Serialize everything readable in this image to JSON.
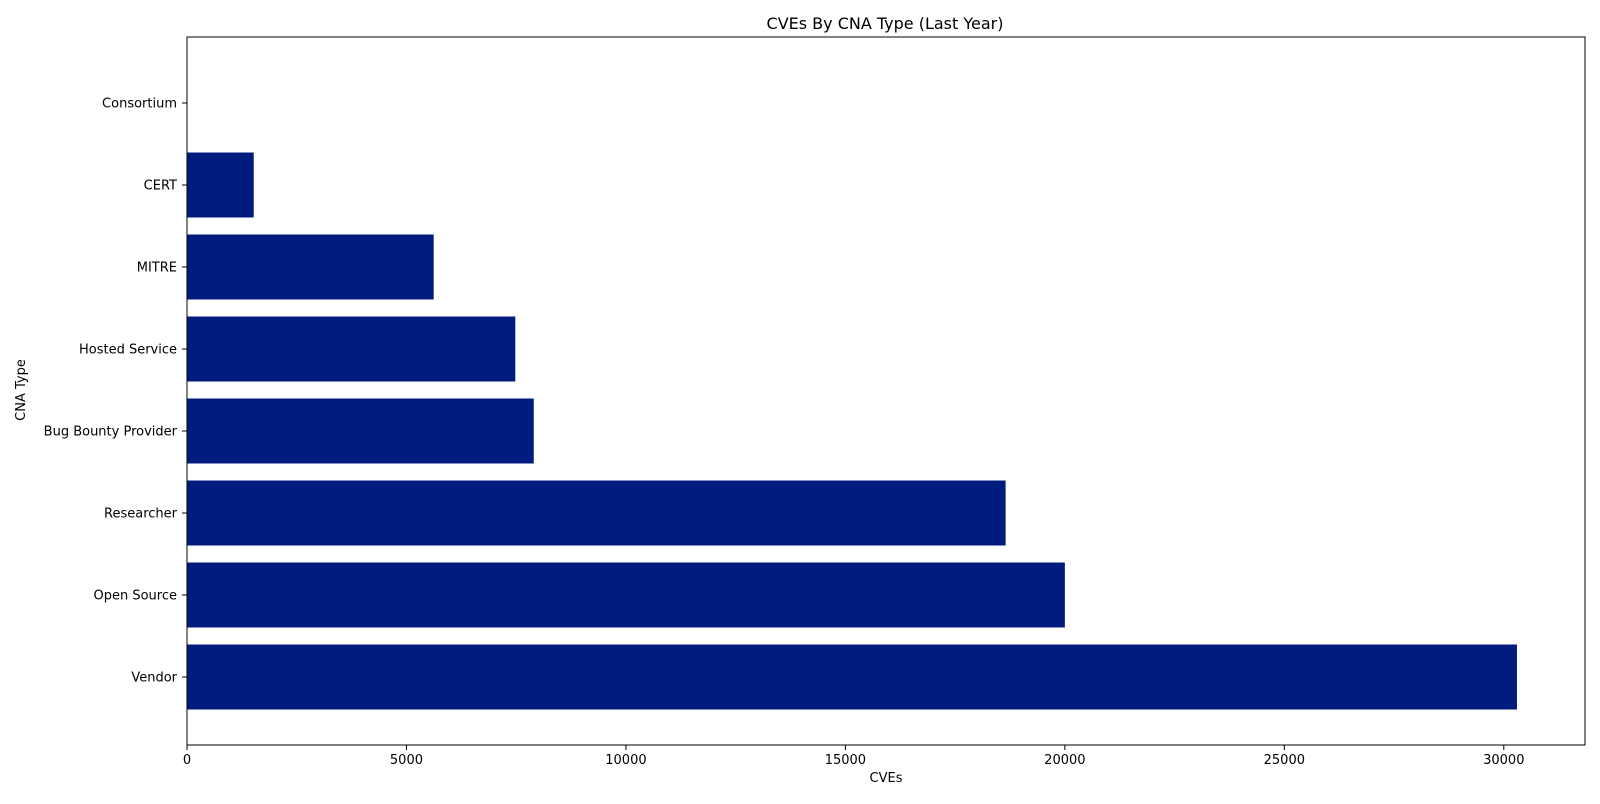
{
  "chart_data": {
    "type": "bar",
    "orientation": "horizontal",
    "title": "CVEs By CNA Type (Last Year)",
    "xlabel": "CVEs",
    "ylabel": "CNA Type",
    "categories": [
      "Vendor",
      "Open Source",
      "Researcher",
      "Bug Bounty Provider",
      "Hosted Service",
      "MITRE",
      "CERT",
      "Consortium"
    ],
    "values": [
      30300,
      20000,
      18650,
      7900,
      7480,
      5620,
      1520,
      0
    ],
    "xlim": [
      0,
      31850
    ],
    "xticks": [
      0,
      5000,
      10000,
      15000,
      20000,
      25000,
      30000
    ],
    "xtick_labels": [
      "0",
      "5000",
      "10000",
      "15000",
      "20000",
      "25000",
      "30000"
    ],
    "grid": false,
    "bar_color": "#001c7f"
  }
}
